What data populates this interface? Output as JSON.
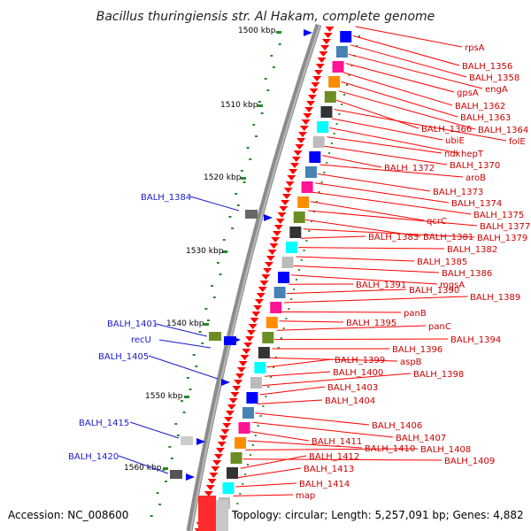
{
  "title": "Bacillus thuringiensis str. Al Hakam, complete genome",
  "footer": {
    "accession": "Accession: NC_008600",
    "topology": "Topology: circular; Length: 5,257,091 bp; Genes: 4,882"
  },
  "kbp_labels": [
    "1500 kbp",
    "1510 kbp",
    "1520 kbp",
    "1530 kbp",
    "1540 kbp",
    "1550 kbp",
    "1560 kbp"
  ],
  "right_labels": [
    "rpsA",
    "BALH_1356",
    "BALH_1358",
    "engA",
    "gpsA",
    "BALH_1362",
    "BALH_1363",
    "BALH_1364",
    "BALH_1366",
    "folE",
    "ubiE",
    "hepT",
    "ndk",
    "BALH_1370",
    "BALH_1372",
    "aroB",
    "BALH_1373",
    "BALH_1374",
    "BALH_1375",
    "qcrC",
    "BALH_1377",
    "BALH_1381",
    "BALH_1379",
    "BALH_1383",
    "BALH_1382",
    "BALH_1385",
    "BALH_1386",
    "mgsA",
    "BALH_1391",
    "BALH_1390",
    "BALH_1389",
    "panB",
    "BALH_1395",
    "panC",
    "BALH_1394",
    "BALH_1396",
    "aspB",
    "BALH_1399",
    "BALH_1400",
    "BALH_1398",
    "BALH_1403",
    "BALH_1404",
    "BALH_1406",
    "BALH_1407",
    "BALH_1411",
    "BALH_1410",
    "BALH_1408",
    "BALH_1409",
    "BALH_1412",
    "BALH_1413",
    "BALH_1414",
    "map"
  ],
  "left_labels": [
    "BALH_1384",
    "BALH_1401",
    "recU",
    "BALH_1405",
    "BALH_1415",
    "BALH_1420"
  ],
  "colors": {
    "forward_gene": "#ff0000",
    "reverse_gene": "#0000ff",
    "backbone": "#888888",
    "tick": "#228b22"
  }
}
